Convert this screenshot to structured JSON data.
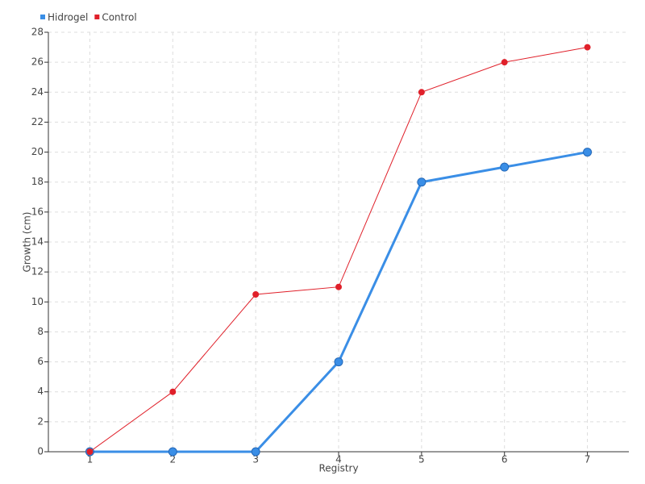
{
  "chart_data": {
    "type": "line",
    "x": [
      1,
      2,
      3,
      4,
      5,
      6,
      7
    ],
    "xlim": [
      0.5,
      7.5
    ],
    "xticks": [
      1,
      2,
      3,
      4,
      5,
      6,
      7
    ],
    "ylim": [
      0,
      28
    ],
    "yticks": [
      0,
      2,
      4,
      6,
      8,
      10,
      12,
      14,
      16,
      18,
      20,
      22,
      24,
      26,
      28
    ],
    "x_label": "Registry",
    "y_label": "Growth (cm)",
    "grid": true,
    "legend": "top-left",
    "series": [
      {
        "name": "Hidrogel",
        "color": "#3a8ee6",
        "values": [
          0,
          0,
          0,
          6,
          18,
          19,
          20
        ]
      },
      {
        "name": "Control",
        "color": "#e0202a",
        "values": [
          0,
          4,
          10.5,
          11,
          24,
          26,
          27
        ]
      }
    ]
  }
}
